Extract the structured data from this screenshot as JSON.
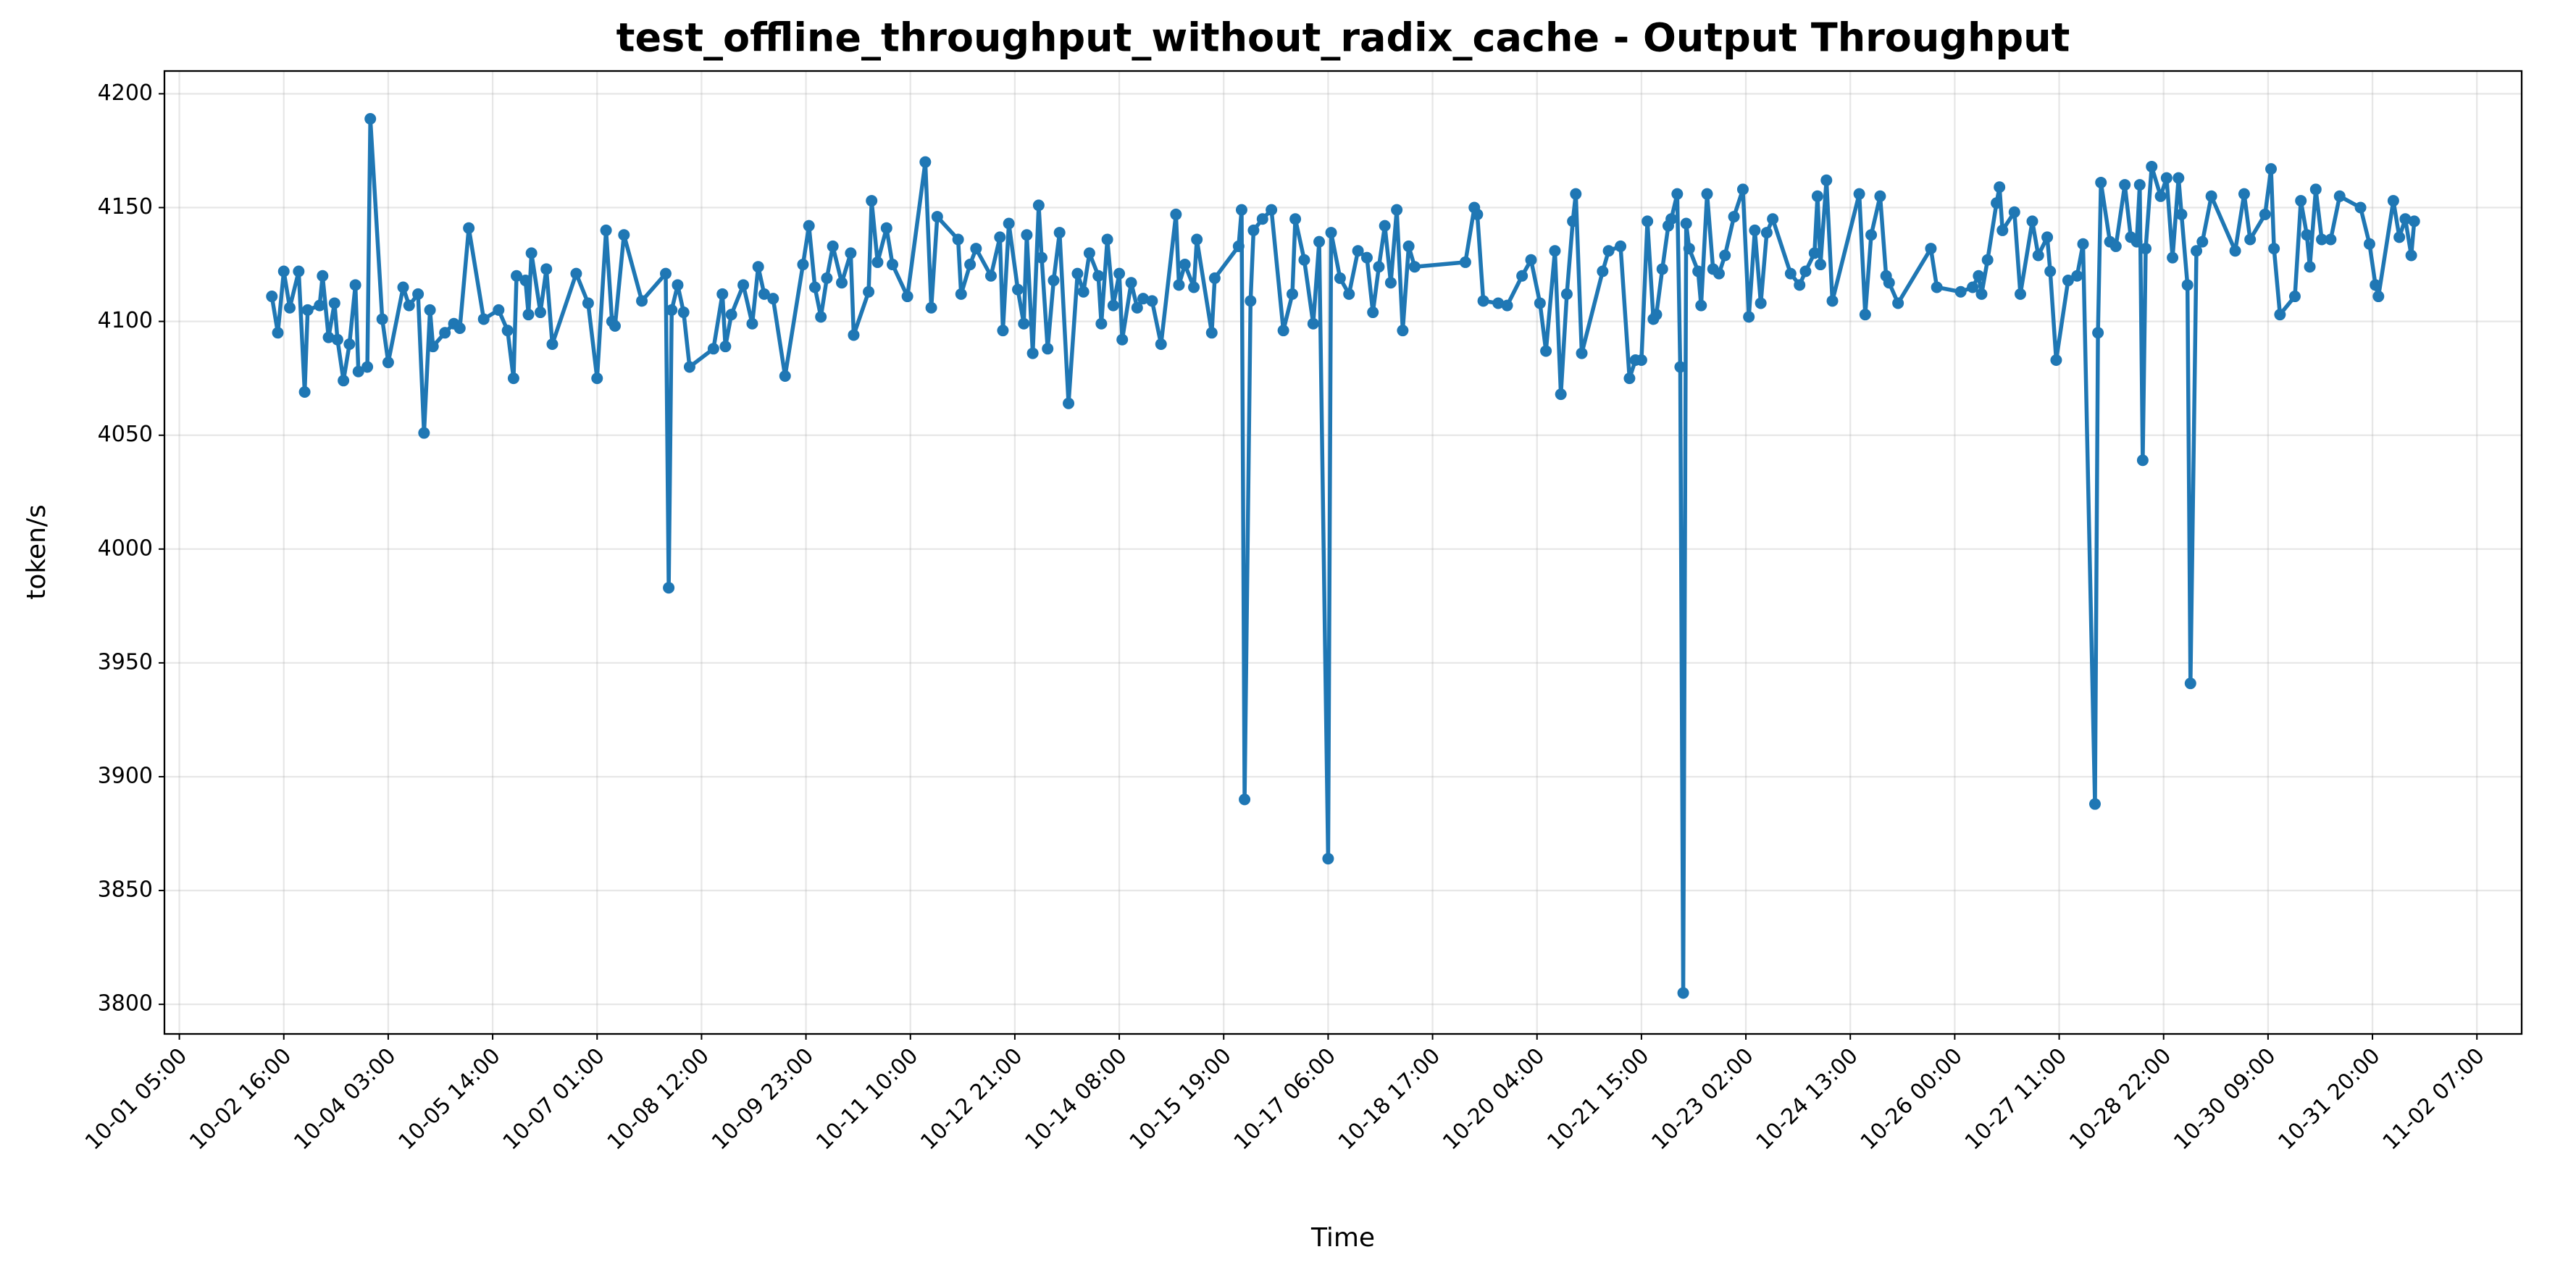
{
  "chart_data": {
    "type": "line",
    "title": "test_offline_throughput_without_radix_cache - Output Throughput",
    "xlabel": "Time",
    "ylabel": "token/s",
    "color": "#1f77b4",
    "grid": true,
    "xlim": [
      "10-01 00:00",
      "11-02 22:00"
    ],
    "xticks": [
      "10-01 05:00",
      "10-02 16:00",
      "10-04 03:00",
      "10-05 14:00",
      "10-07 01:00",
      "10-08 12:00",
      "10-09 23:00",
      "10-11 10:00",
      "10-12 21:00",
      "10-14 08:00",
      "10-15 19:00",
      "10-17 06:00",
      "10-18 17:00",
      "10-20 04:00",
      "10-21 15:00",
      "10-23 02:00",
      "10-24 13:00",
      "10-26 00:00",
      "10-27 11:00",
      "10-28 22:00",
      "10-30 09:00",
      "10-31 20:00",
      "11-02 07:00"
    ],
    "ylim": [
      3787,
      4210
    ],
    "yticks": [
      3800,
      3850,
      3900,
      3950,
      4000,
      4050,
      4100,
      4150,
      4200
    ],
    "x": [
      "10-02 12:00",
      "10-02 14:00",
      "10-02 16:00",
      "10-02 18:00",
      "10-02 21:00",
      "10-02 23:00",
      "10-03 00:00",
      "10-03 04:00",
      "10-03 05:00",
      "10-03 07:00",
      "10-03 09:00",
      "10-03 10:00",
      "10-03 12:00",
      "10-03 14:00",
      "10-03 16:00",
      "10-03 17:00",
      "10-03 20:00",
      "10-03 21:00",
      "10-04 01:00",
      "10-04 03:00",
      "10-04 08:00",
      "10-04 10:00",
      "10-04 13:00",
      "10-04 15:00",
      "10-04 17:00",
      "10-04 18:00",
      "10-04 22:00",
      "10-05 01:00",
      "10-05 03:00",
      "10-05 06:00",
      "10-05 11:00",
      "10-05 16:00",
      "10-05 19:00",
      "10-05 21:00",
      "10-05 22:00",
      "10-06 01:00",
      "10-06 02:00",
      "10-06 03:00",
      "10-06 06:00",
      "10-06 08:00",
      "10-06 10:00",
      "10-06 18:00",
      "10-06 22:00",
      "10-07 01:00",
      "10-07 04:00",
      "10-07 06:00",
      "10-07 07:00",
      "10-07 10:00",
      "10-07 16:00",
      "10-08 00:00",
      "10-08 01:00",
      "10-08 02:00",
      "10-08 04:00",
      "10-08 06:00",
      "10-08 08:00",
      "10-08 16:00",
      "10-08 19:00",
      "10-08 20:00",
      "10-08 22:00",
      "10-09 02:00",
      "10-09 05:00",
      "10-09 07:00",
      "10-09 09:00",
      "10-09 12:00",
      "10-09 16:00",
      "10-09 22:00",
      "10-10 00:00",
      "10-10 02:00",
      "10-10 04:00",
      "10-10 06:00",
      "10-10 08:00",
      "10-10 11:00",
      "10-10 14:00",
      "10-10 15:00",
      "10-10 20:00",
      "10-10 21:00",
      "10-10 23:00",
      "10-11 02:00",
      "10-11 04:00",
      "10-11 09:00",
      "10-11 15:00",
      "10-11 17:00",
      "10-11 19:00",
      "10-12 02:00",
      "10-12 03:00",
      "10-12 06:00",
      "10-12 08:00",
      "10-12 13:00",
      "10-12 16:00",
      "10-12 17:00",
      "10-12 19:00",
      "10-12 22:00",
      "10-13 00:00",
      "10-13 01:00",
      "10-13 03:00",
      "10-13 05:00",
      "10-13 06:00",
      "10-13 08:00",
      "10-13 10:00",
      "10-13 12:00",
      "10-13 15:00",
      "10-13 18:00",
      "10-13 20:00",
      "10-13 22:00",
      "10-14 01:00",
      "10-14 02:00",
      "10-14 04:00",
      "10-14 06:00",
      "10-14 08:00",
      "10-14 09:00",
      "10-14 12:00",
      "10-14 14:00",
      "10-14 16:00",
      "10-14 19:00",
      "10-14 22:00",
      "10-15 03:00",
      "10-15 04:00",
      "10-15 06:00",
      "10-15 09:00",
      "10-15 10:00",
      "10-15 15:00",
      "10-15 16:00",
      "10-16 00:00",
      "10-16 01:00",
      "10-16 02:00",
      "10-16 04:00",
      "10-16 05:00",
      "10-16 08:00",
      "10-16 11:00",
      "10-16 15:00",
      "10-16 18:00",
      "10-16 19:00",
      "10-16 22:00",
      "10-17 01:00",
      "10-17 03:00",
      "10-17 06:00",
      "10-17 07:00",
      "10-17 10:00",
      "10-17 13:00",
      "10-17 16:00",
      "10-17 19:00",
      "10-17 21:00",
      "10-17 23:00",
      "10-18 01:00",
      "10-18 03:00",
      "10-18 05:00",
      "10-18 07:00",
      "10-18 09:00",
      "10-18 11:00",
      "10-19 04:00",
      "10-19 07:00",
      "10-19 08:00",
      "10-19 10:00",
      "10-19 15:00",
      "10-19 18:00",
      "10-19 23:00",
      "10-20 02:00",
      "10-20 05:00",
      "10-20 07:00",
      "10-20 10:00",
      "10-20 12:00",
      "10-20 14:00",
      "10-20 16:00",
      "10-20 17:00",
      "10-20 19:00",
      "10-21 02:00",
      "10-21 04:00",
      "10-21 08:00",
      "10-21 11:00",
      "10-21 13:00",
      "10-21 15:00",
      "10-21 17:00",
      "10-21 19:00",
      "10-21 20:00",
      "10-21 22:00",
      "10-22 00:00",
      "10-22 01:00",
      "10-22 03:00",
      "10-22 04:00",
      "10-22 05:00",
      "10-22 06:00",
      "10-22 07:00",
      "10-22 10:00",
      "10-22 11:00",
      "10-22 13:00",
      "10-22 15:00",
      "10-22 17:00",
      "10-22 19:00",
      "10-22 22:00",
      "10-23 01:00",
      "10-23 03:00",
      "10-23 05:00",
      "10-23 07:00",
      "10-23 09:00",
      "10-23 11:00",
      "10-23 17:00",
      "10-23 20:00",
      "10-23 22:00",
      "10-24 01:00",
      "10-24 02:00",
      "10-24 03:00",
      "10-24 05:00",
      "10-24 07:00",
      "10-24 16:00",
      "10-24 18:00",
      "10-24 20:00",
      "10-24 23:00",
      "10-25 01:00",
      "10-25 02:00",
      "10-25 05:00",
      "10-25 16:00",
      "10-25 18:00",
      "10-26 02:00",
      "10-26 06:00",
      "10-26 08:00",
      "10-26 09:00",
      "10-26 11:00",
      "10-26 14:00",
      "10-26 15:00",
      "10-26 16:00",
      "10-26 20:00",
      "10-26 22:00",
      "10-27 02:00",
      "10-27 04:00",
      "10-27 07:00",
      "10-27 08:00",
      "10-27 10:00",
      "10-27 14:00",
      "10-27 17:00",
      "10-27 19:00",
      "10-27 23:00",
      "10-28 00:00",
      "10-28 01:00",
      "10-28 04:00",
      "10-28 06:00",
      "10-28 09:00",
      "10-28 11:00",
      "10-28 13:00",
      "10-28 14:00",
      "10-28 15:00",
      "10-28 16:00",
      "10-28 18:00",
      "10-28 21:00",
      "10-28 23:00",
      "10-29 01:00",
      "10-29 03:00",
      "10-29 04:00",
      "10-29 06:00",
      "10-29 07:00",
      "10-29 09:00",
      "10-29 11:00",
      "10-29 14:00",
      "10-29 22:00",
      "10-30 01:00",
      "10-30 03:00",
      "10-30 08:00",
      "10-30 10:00",
      "10-30 11:00",
      "10-30 13:00",
      "10-30 18:00",
      "10-30 20:00",
      "10-30 22:00",
      "10-30 23:00",
      "10-31 01:00",
      "10-31 03:00",
      "10-31 06:00",
      "10-31 09:00",
      "10-31 16:00",
      "10-31 19:00",
      "10-31 21:00",
      "10-31 22:00",
      "11-01 03:00",
      "11-01 05:00",
      "11-01 07:00",
      "11-01 09:00",
      "11-01 10:00"
    ],
    "values": [
      4111,
      4095,
      4122,
      4106,
      4122,
      4069,
      4105,
      4107,
      4120,
      4093,
      4108,
      4092,
      4074,
      4090,
      4116,
      4078,
      4080,
      4189,
      4101,
      4082,
      4115,
      4107,
      4112,
      4051,
      4105,
      4089,
      4095,
      4099,
      4097,
      4141,
      4101,
      4105,
      4096,
      4075,
      4120,
      4118,
      4103,
      4130,
      4104,
      4123,
      4090,
      4121,
      4108,
      4075,
      4140,
      4100,
      4098,
      4138,
      4109,
      4121,
      3983,
      4105,
      4116,
      4104,
      4080,
      4088,
      4112,
      4089,
      4103,
      4116,
      4099,
      4124,
      4112,
      4110,
      4076,
      4125,
      4142,
      4115,
      4102,
      4119,
      4133,
      4117,
      4130,
      4094,
      4113,
      4153,
      4126,
      4141,
      4125,
      4111,
      4170,
      4106,
      4146,
      4136,
      4112,
      4125,
      4132,
      4120,
      4137,
      4096,
      4143,
      4114,
      4099,
      4138,
      4086,
      4151,
      4128,
      4088,
      4118,
      4139,
      4064,
      4121,
      4113,
      4130,
      4120,
      4099,
      4136,
      4107,
      4121,
      4092,
      4117,
      4106,
      4110,
      4109,
      4090,
      4147,
      4116,
      4125,
      4115,
      4136,
      4095,
      4119,
      4133,
      4149,
      3890,
      4109,
      4140,
      4145,
      4149,
      4096,
      4112,
      4145,
      4127,
      4099,
      4135,
      3864,
      4139,
      4119,
      4112,
      4131,
      4128,
      4104,
      4124,
      4142,
      4117,
      4149,
      4096,
      4133,
      4124,
      4126,
      4150,
      4147,
      4109,
      4108,
      4107,
      4120,
      4127,
      4108,
      4087,
      4131,
      4068,
      4112,
      4144,
      4156,
      4086,
      4122,
      4131,
      4133,
      4075,
      4083,
      4083,
      4144,
      4101,
      4103,
      4123,
      4142,
      4145,
      4156,
      4080,
      3805,
      4143,
      4132,
      4122,
      4107,
      4156,
      4123,
      4121,
      4129,
      4146,
      4158,
      4102,
      4140,
      4108,
      4139,
      4145,
      4121,
      4116,
      4122,
      4130,
      4155,
      4125,
      4162,
      4109,
      4156,
      4103,
      4138,
      4155,
      4120,
      4117,
      4108,
      4132,
      4115,
      4113,
      4115,
      4120,
      4112,
      4127,
      4152,
      4159,
      4140,
      4148,
      4112,
      4144,
      4129,
      4137,
      4122,
      4083,
      4118,
      4120,
      4134,
      3888,
      4095,
      4161,
      4135,
      4133,
      4160,
      4137,
      4135,
      4160,
      4039,
      4132,
      4168,
      4155,
      4163,
      4128,
      4163,
      4147,
      4116,
      3941,
      4131,
      4135,
      4155,
      4131,
      4156,
      4136,
      4147,
      4167,
      4132,
      4103,
      4111,
      4153,
      4138,
      4124,
      4158,
      4136,
      4136,
      4155,
      4150,
      4134,
      4116,
      4111,
      4153,
      4137,
      4145,
      4129,
      4144
    ]
  }
}
